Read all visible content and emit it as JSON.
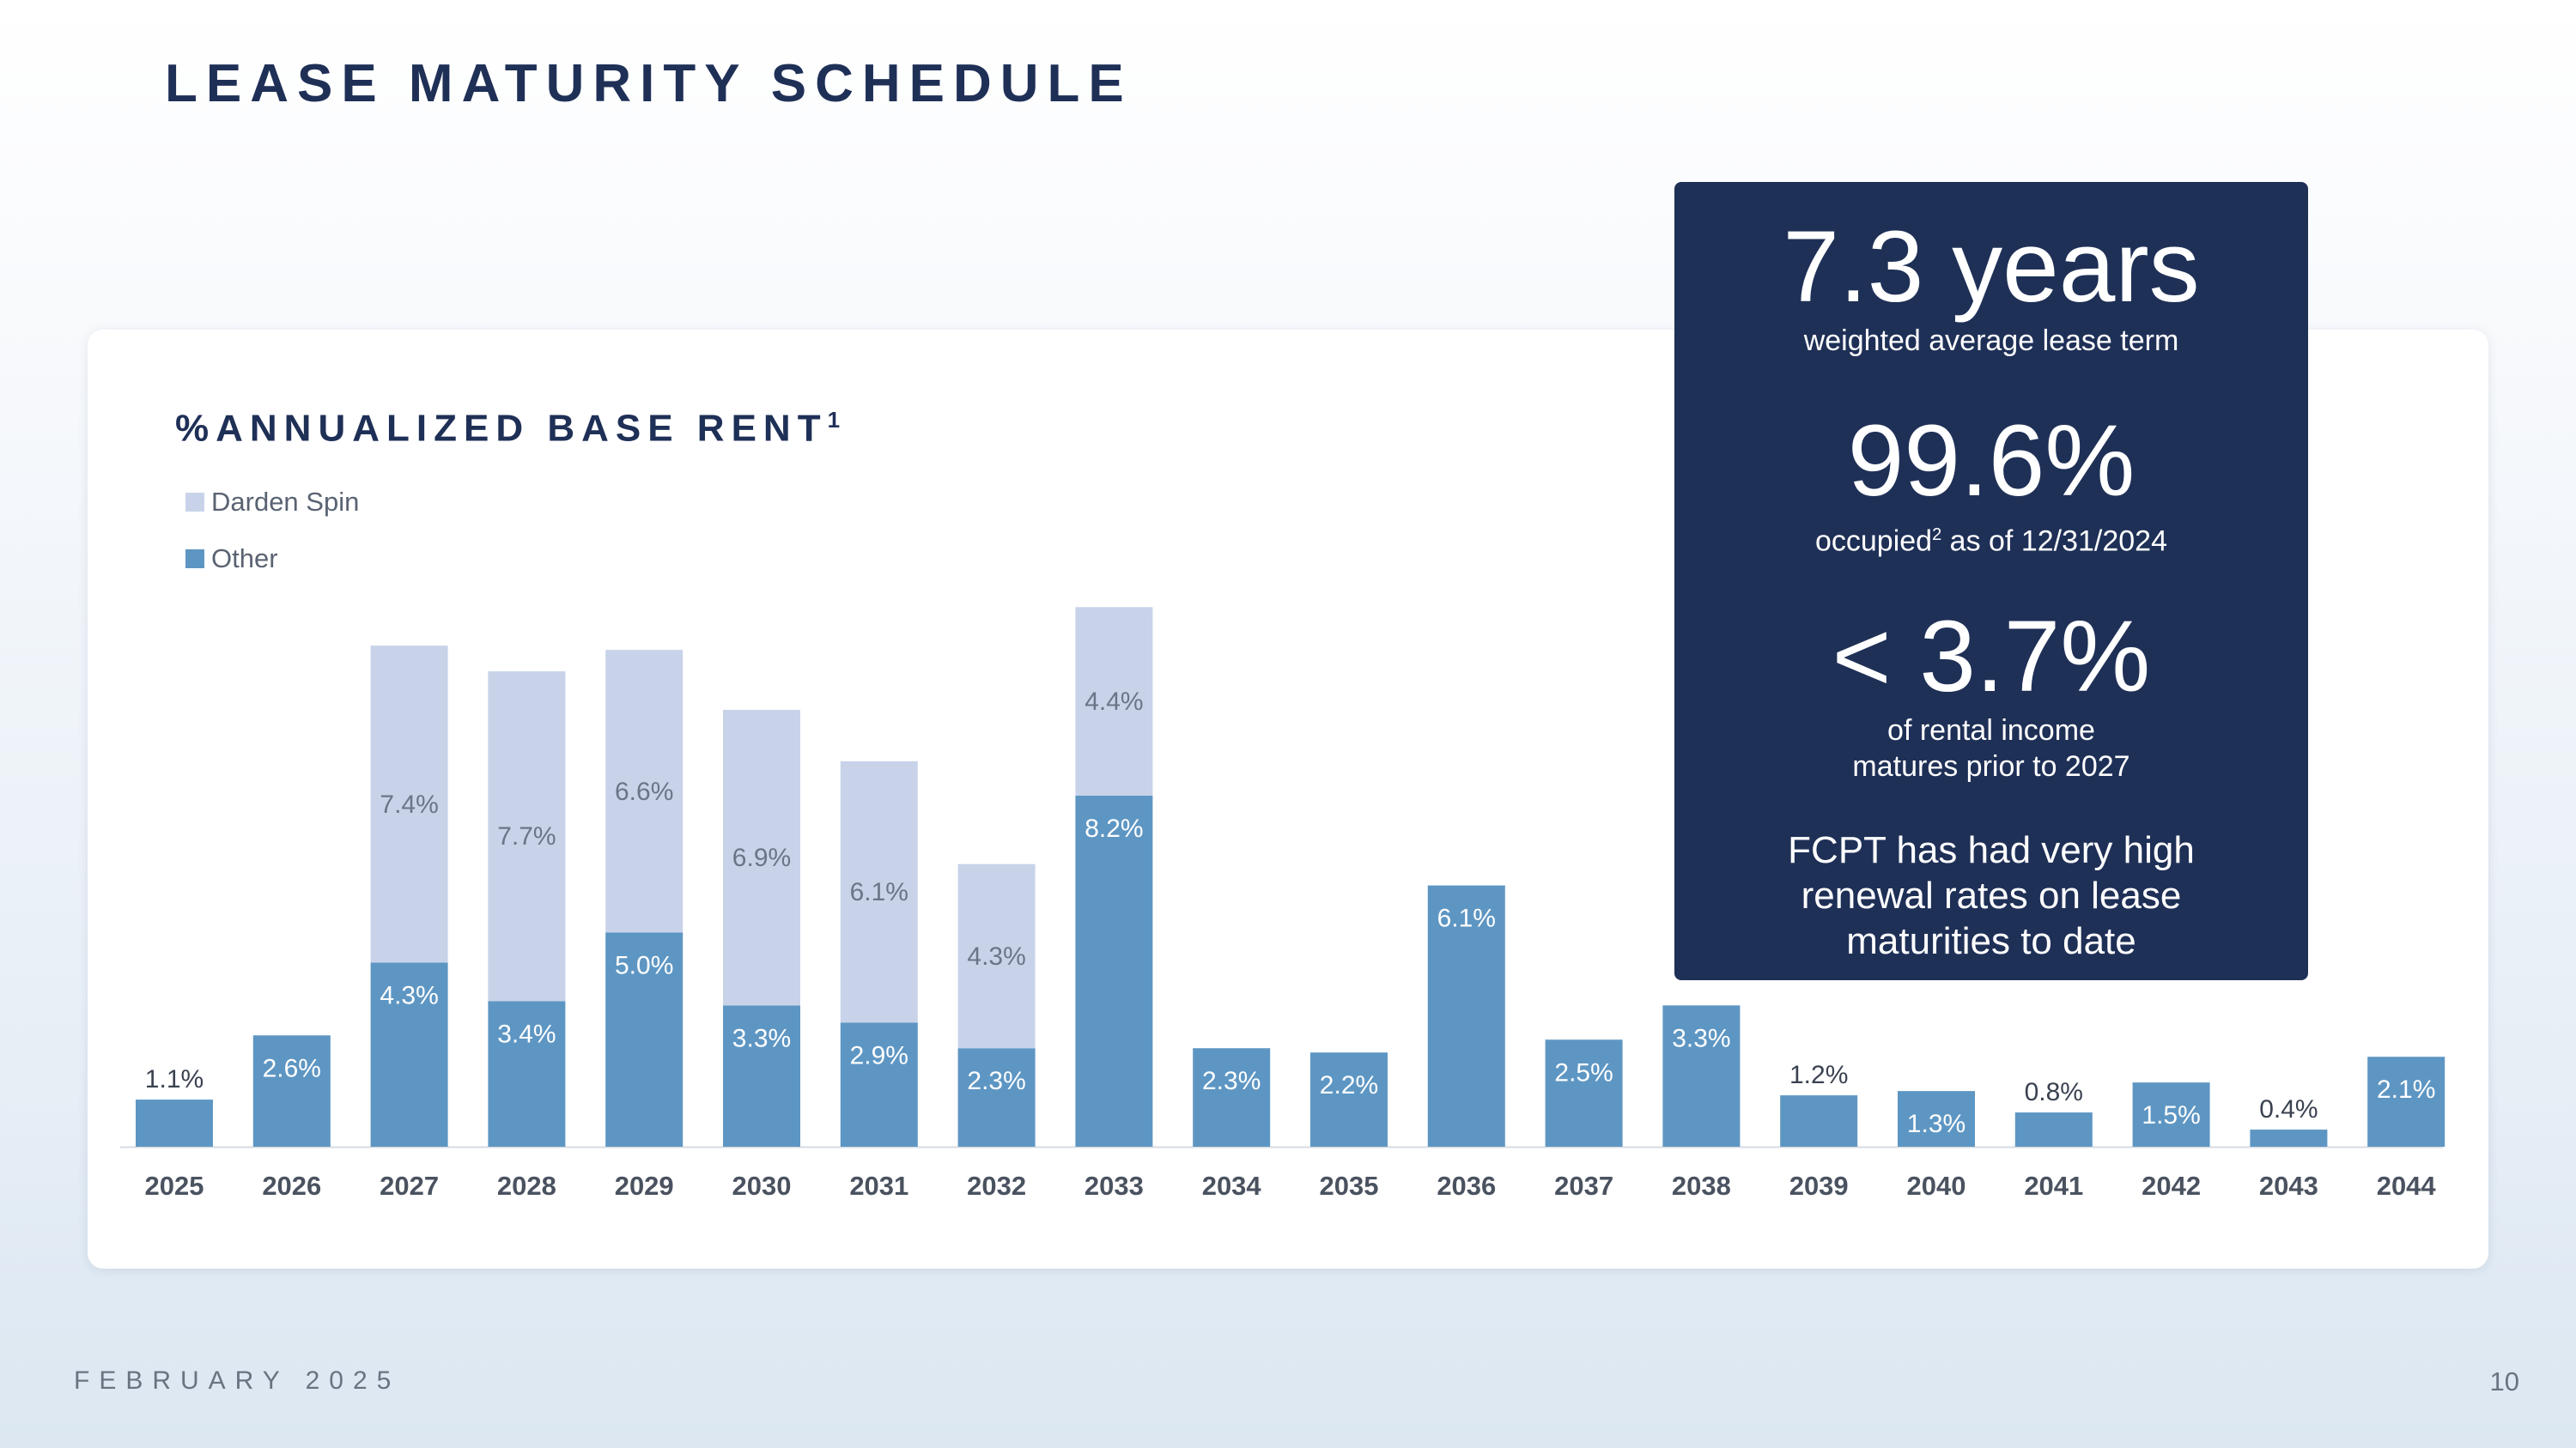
{
  "page": {
    "title": "LEASE MATURITY SCHEDULE",
    "footer_date": "FEBRUARY 2025",
    "page_number": "10"
  },
  "chart_data": {
    "type": "bar",
    "stacked": true,
    "title": "%ANNUALIZED BASE RENT",
    "title_footnote": "1",
    "xlabel": "",
    "ylabel": "",
    "ylim": [
      0,
      12.6
    ],
    "grid": false,
    "legend_position": "top-left",
    "categories": [
      "2025",
      "2026",
      "2027",
      "2028",
      "2029",
      "2030",
      "2031",
      "2032",
      "2033",
      "2034",
      "2035",
      "2036",
      "2037",
      "2038",
      "2039",
      "2040",
      "2041",
      "2042",
      "2043",
      "2044"
    ],
    "series": [
      {
        "name": "Other",
        "color": "#5e96c3",
        "values": [
          1.1,
          2.6,
          4.3,
          3.4,
          5.0,
          3.3,
          2.9,
          2.3,
          8.2,
          2.3,
          2.2,
          6.1,
          2.5,
          3.3,
          1.2,
          1.3,
          0.8,
          1.5,
          0.4,
          2.1
        ],
        "labels": [
          "1.1%",
          "2.6%",
          "4.3%",
          "3.4%",
          "5.0%",
          "3.3%",
          "2.9%",
          "2.3%",
          "8.2%",
          "2.3%",
          "2.2%",
          "6.1%",
          "2.5%",
          "3.3%",
          "1.2%",
          "1.3%",
          "0.8%",
          "1.5%",
          "0.4%",
          "2.1%"
        ]
      },
      {
        "name": "Darden Spin",
        "color": "#c8d3ea",
        "values": [
          0,
          0,
          7.4,
          7.7,
          6.6,
          6.9,
          6.1,
          4.3,
          4.4,
          0,
          0,
          0,
          0,
          0,
          0,
          0,
          0,
          0,
          0,
          0
        ],
        "labels": [
          "",
          "",
          "7.4%",
          "7.7%",
          "6.6%",
          "6.9%",
          "6.1%",
          "4.3%",
          "4.4%",
          "",
          "",
          "",
          "",
          "",
          "",
          "",
          "",
          "",
          "",
          ""
        ]
      }
    ],
    "legend": [
      "Darden Spin",
      "Other"
    ]
  },
  "stats": {
    "term_value": "7.3 years",
    "term_caption": "weighted average lease term",
    "occupied_value": "99.6%",
    "occupied_caption_pre": "occupied",
    "occupied_footnote": "2",
    "occupied_caption_post": " as of 12/31/2024",
    "maturity_value": "< 3.7%",
    "maturity_caption_line1": "of rental income",
    "maturity_caption_line2": "matures prior to 2027",
    "renewal_line1": "FCPT has had very high",
    "renewal_line2": "renewal rates on lease",
    "renewal_line3": "maturities to date"
  }
}
